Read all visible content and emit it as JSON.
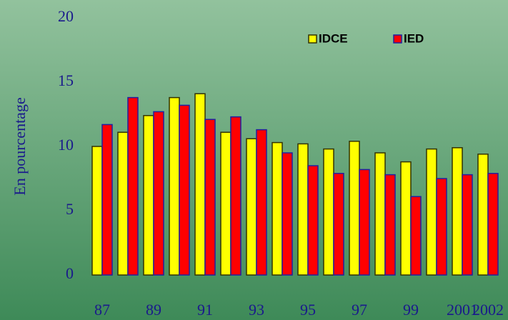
{
  "chart_data": {
    "type": "bar",
    "y_label": "En pourcentage",
    "categories": [
      "87",
      null,
      "89",
      null,
      "91",
      null,
      "93",
      null,
      "95",
      null,
      "97",
      null,
      "99",
      null,
      "2001",
      "2002"
    ],
    "series": [
      {
        "name": "IDCE",
        "color": "#ffff00",
        "values": [
          10.0,
          11.1,
          12.4,
          13.8,
          14.1,
          11.1,
          10.6,
          10.3,
          10.2,
          9.8,
          10.4,
          9.5,
          8.8,
          9.8,
          9.9,
          9.4
        ]
      },
      {
        "name": "IED",
        "color": "#ff0000",
        "values": [
          11.7,
          13.8,
          12.7,
          13.2,
          12.1,
          12.3,
          11.3,
          9.5,
          8.5,
          7.9,
          8.2,
          7.8,
          6.1,
          7.5,
          7.8,
          7.9
        ]
      }
    ],
    "ylim": [
      0,
      20
    ],
    "yticks": [
      0,
      5,
      10,
      15,
      20
    ]
  }
}
